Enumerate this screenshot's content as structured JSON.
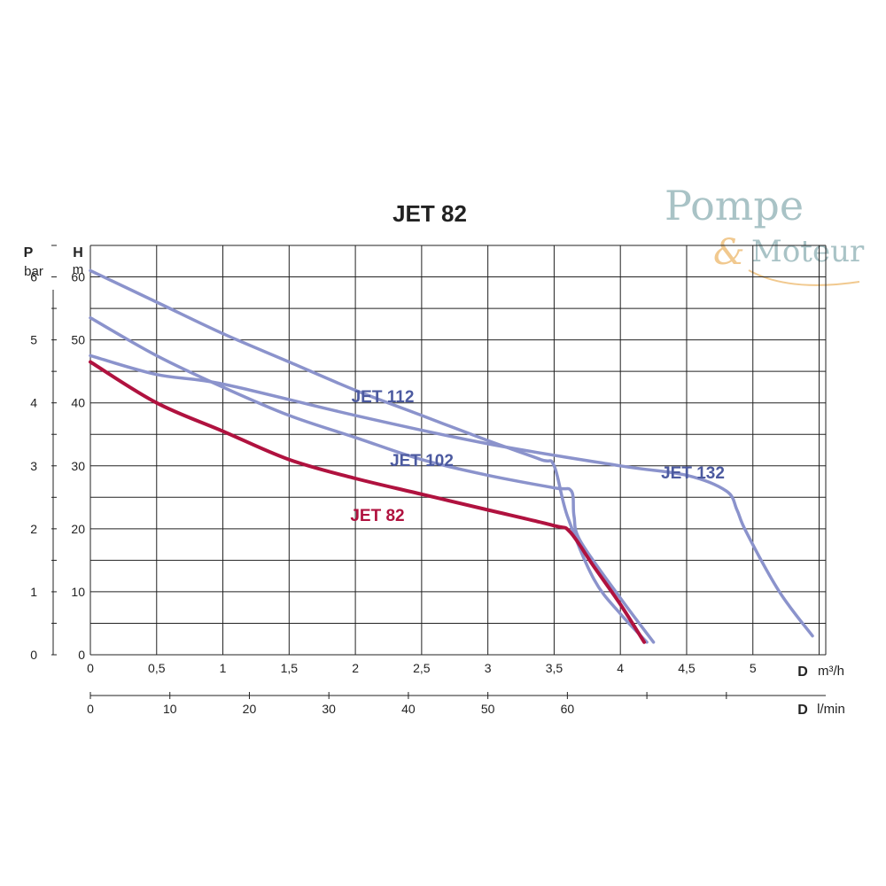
{
  "chart_data": {
    "type": "line",
    "title": "JET 82",
    "left_axis": {
      "symbol": "P",
      "unit": "bar",
      "ticks": [
        "0",
        "1",
        "2",
        "3",
        "4",
        "5",
        "6"
      ],
      "range": [
        0,
        6.5
      ]
    },
    "right_axis": {
      "symbol": "H",
      "unit": "m",
      "ticks": [
        "0",
        "10",
        "20",
        "30",
        "40",
        "50",
        "60"
      ],
      "range": [
        0,
        65
      ]
    },
    "x_axis": {
      "symbol": "D",
      "unit": "m³/h",
      "ticks": [
        "0",
        "0,5",
        "1",
        "1,5",
        "2",
        "2,5",
        "3",
        "3,5",
        "4",
        "4,5",
        "5"
      ],
      "range": [
        0,
        5.55
      ]
    },
    "x2_axis": {
      "symbol": "D",
      "unit": "l/min",
      "ticks": [
        "0",
        "10",
        "20",
        "30",
        "40",
        "50",
        "60"
      ]
    },
    "grid": true,
    "series": [
      {
        "name": "JET 82",
        "color": "#b0123f",
        "highlight": true,
        "x": [
          0,
          0.5,
          1.0,
          1.5,
          2.0,
          2.5,
          3.0,
          3.5,
          3.62,
          3.8,
          4.0,
          4.18
        ],
        "y": [
          46.5,
          40.0,
          35.5,
          31.0,
          28.0,
          25.5,
          23.0,
          20.5,
          19.5,
          14.0,
          8.0,
          2.0
        ]
      },
      {
        "name": "JET 102",
        "color": "#8b93cc",
        "x": [
          0,
          0.5,
          1.0,
          1.5,
          2.0,
          2.5,
          3.0,
          3.5,
          3.63,
          3.65,
          3.7,
          4.0,
          4.25
        ],
        "y": [
          53.5,
          47.5,
          42.5,
          38.0,
          34.5,
          31.0,
          28.5,
          26.5,
          26.0,
          22.0,
          18.0,
          9.0,
          2.0
        ]
      },
      {
        "name": "JET 112",
        "color": "#8b93cc",
        "x": [
          0,
          0.5,
          1.0,
          1.5,
          2.0,
          2.5,
          3.0,
          3.4,
          3.5,
          3.6,
          3.8,
          4.0,
          4.2
        ],
        "y": [
          61.0,
          56.0,
          51.0,
          46.5,
          42.0,
          38.0,
          34.0,
          31.0,
          30.0,
          22.0,
          12.0,
          6.5,
          2.0
        ]
      },
      {
        "name": "JET 132",
        "color": "#8b93cc",
        "x": [
          0,
          0.5,
          1.0,
          2.0,
          3.0,
          4.0,
          4.5,
          4.8,
          4.88,
          4.95,
          5.2,
          5.45
        ],
        "y": [
          47.5,
          44.5,
          43.0,
          38.0,
          33.5,
          30.0,
          28.5,
          26.0,
          23.0,
          19.5,
          10.0,
          3.0
        ]
      }
    ]
  },
  "logo": {
    "line1": "Pompe",
    "amp": "&",
    "line2": "Moteur"
  }
}
